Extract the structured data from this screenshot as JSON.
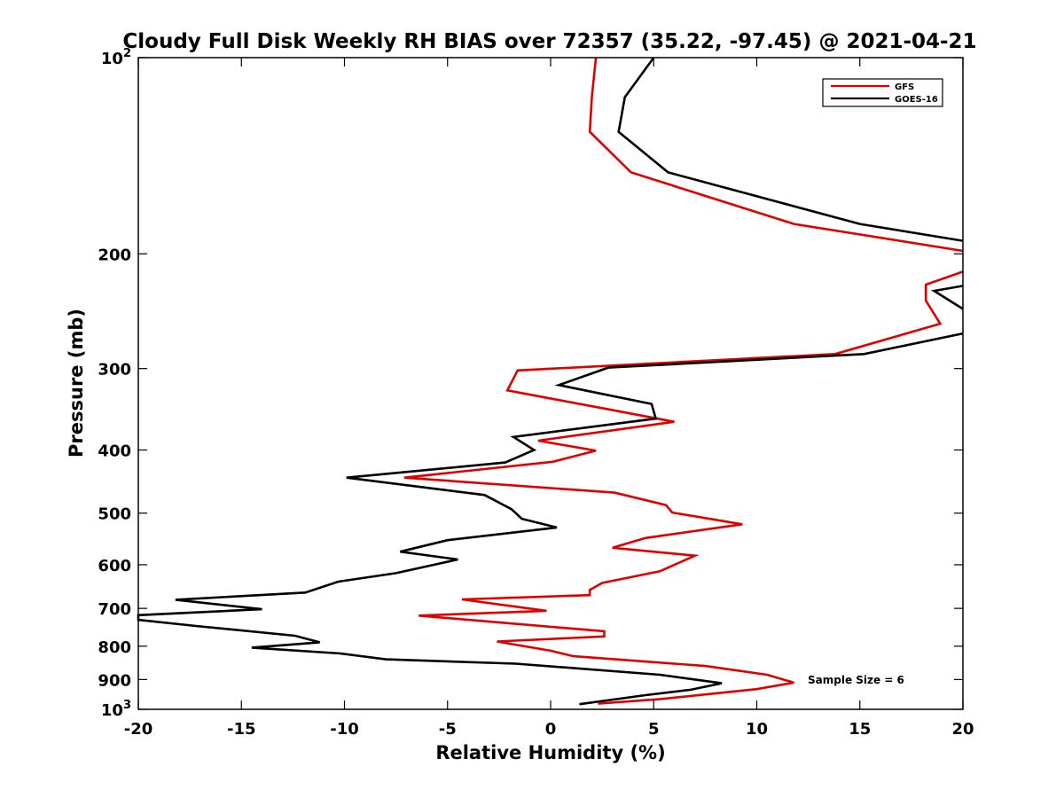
{
  "chart_data": {
    "type": "line",
    "title": "Cloudy Full Disk Weekly RH BIAS over 72357 (35.22, -97.45) @ 2021-04-21",
    "xlabel": "Relative Humidity (%)",
    "ylabel": "Pressure (mb)",
    "xlim": [
      -20,
      20
    ],
    "ylim": [
      100,
      1000
    ],
    "yscale": "log",
    "yreversed": true,
    "x_ticks": [
      -20,
      -15,
      -10,
      -5,
      0,
      5,
      10,
      15,
      20
    ],
    "x_tick_labels": [
      "-20",
      "-15",
      "-10",
      "-5",
      "0",
      "5",
      "10",
      "15",
      "20"
    ],
    "y_ticks": [
      100,
      200,
      300,
      400,
      500,
      600,
      700,
      800,
      900,
      1000
    ],
    "y_tick_labels": [
      {
        "base": "10",
        "exp": "2"
      },
      {
        "base": "200",
        "exp": ""
      },
      {
        "base": "300",
        "exp": ""
      },
      {
        "base": "400",
        "exp": ""
      },
      {
        "base": "500",
        "exp": ""
      },
      {
        "base": "600",
        "exp": ""
      },
      {
        "base": "700",
        "exp": ""
      },
      {
        "base": "800",
        "exp": ""
      },
      {
        "base": "900",
        "exp": ""
      },
      {
        "base": "10",
        "exp": "3"
      }
    ],
    "grid": false,
    "legend_position": "top-right",
    "annotation": "Sample Size = 6",
    "series": [
      {
        "name": "GFS",
        "color": "#e00000",
        "points": [
          [
            2.2,
            100
          ],
          [
            2.0,
            115
          ],
          [
            1.9,
            130
          ],
          [
            3.9,
            150
          ],
          [
            11.8,
            180
          ],
          [
            20.0,
            198
          ],
          [
            null,
            null
          ],
          [
            20.0,
            213
          ],
          [
            18.2,
            223
          ],
          [
            18.2,
            236
          ],
          [
            18.9,
            256
          ],
          [
            13.8,
            285
          ],
          [
            -1.6,
            302
          ],
          [
            -2.1,
            324
          ],
          [
            2.7,
            346
          ],
          [
            6.0,
            362
          ],
          [
            -0.6,
            387
          ],
          [
            2.2,
            401
          ],
          [
            0.1,
            417
          ],
          [
            -7.1,
            441
          ],
          [
            3.1,
            465
          ],
          [
            5.6,
            486
          ],
          [
            5.9,
            499
          ],
          [
            9.3,
            520
          ],
          [
            4.6,
            546
          ],
          [
            3.0,
            565
          ],
          [
            7.0,
            581
          ],
          [
            5.3,
            614
          ],
          [
            2.5,
            640
          ],
          [
            1.9,
            656
          ],
          [
            1.9,
            668
          ],
          [
            -4.3,
            678
          ],
          [
            -0.2,
            706
          ],
          [
            -6.4,
            718
          ],
          [
            2.6,
            759
          ],
          [
            2.6,
            773
          ],
          [
            -2.6,
            787
          ],
          [
            0.0,
            813
          ],
          [
            1.1,
            829
          ],
          [
            7.5,
            858
          ],
          [
            10.5,
            885
          ],
          [
            11.8,
            910
          ],
          [
            10.0,
            931
          ],
          [
            5.4,
            964
          ],
          [
            2.3,
            980
          ]
        ]
      },
      {
        "name": "GOES-16",
        "color": "#000000",
        "points": [
          [
            5.0,
            100
          ],
          [
            3.6,
            115
          ],
          [
            3.3,
            130
          ],
          [
            5.7,
            150
          ],
          [
            15.0,
            180
          ],
          [
            20.0,
            191
          ],
          [
            null,
            null
          ],
          [
            20.0,
            224
          ],
          [
            18.6,
            228
          ],
          [
            20.0,
            243
          ],
          [
            null,
            null
          ],
          [
            20.0,
            265
          ],
          [
            15.2,
            285
          ],
          [
            2.8,
            299
          ],
          [
            0.4,
            318
          ],
          [
            4.9,
            340
          ],
          [
            5.1,
            358
          ],
          [
            -1.8,
            382
          ],
          [
            -0.8,
            400
          ],
          [
            -2.2,
            418
          ],
          [
            -9.9,
            441
          ],
          [
            -3.2,
            469
          ],
          [
            -1.9,
            493
          ],
          [
            -1.4,
            510
          ],
          [
            0.3,
            526
          ],
          [
            -5.0,
            550
          ],
          [
            -7.3,
            573
          ],
          [
            -4.5,
            589
          ],
          [
            -7.5,
            618
          ],
          [
            -10.3,
            637
          ],
          [
            -11.9,
            662
          ],
          [
            -18.2,
            679
          ],
          [
            -14.0,
            702
          ],
          [
            -20.0,
            717
          ],
          [
            -20.0,
            729
          ],
          [
            -17.2,
            745
          ],
          [
            -12.4,
            771
          ],
          [
            -11.2,
            789
          ],
          [
            -14.5,
            804
          ],
          [
            -10.2,
            821
          ],
          [
            -8.0,
            838
          ],
          [
            -1.7,
            851
          ],
          [
            5.3,
            885
          ],
          [
            8.3,
            912
          ],
          [
            6.8,
            933
          ],
          [
            4.6,
            951
          ],
          [
            1.4,
            982
          ]
        ]
      }
    ]
  }
}
